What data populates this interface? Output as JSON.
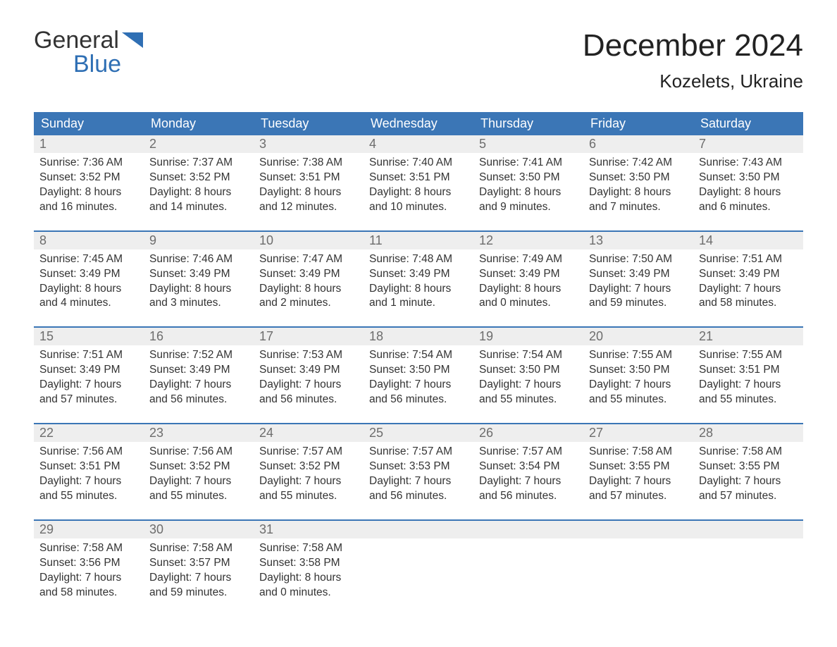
{
  "brand": {
    "top": "General",
    "bottom": "Blue",
    "top_color": "#333333",
    "bottom_color": "#2f6fb4",
    "flag_color": "#2f6fb4"
  },
  "title": "December 2024",
  "location": "Kozelets, Ukraine",
  "colors": {
    "header_bg": "#3b76b6",
    "header_text": "#ffffff",
    "daynum_bg": "#eeeeee",
    "daynum_text": "#6d6d6d",
    "body_text": "#333333",
    "week_border": "#3b76b6",
    "page_bg": "#ffffff"
  },
  "typography": {
    "title_fontsize": 44,
    "location_fontsize": 26,
    "dayheader_fontsize": 18,
    "daynum_fontsize": 18,
    "daydata_fontsize": 15.5,
    "font_family": "Arial"
  },
  "day_headers": [
    "Sunday",
    "Monday",
    "Tuesday",
    "Wednesday",
    "Thursday",
    "Friday",
    "Saturday"
  ],
  "weeks": [
    [
      {
        "n": "1",
        "sunrise": "Sunrise: 7:36 AM",
        "sunset": "Sunset: 3:52 PM",
        "dl1": "Daylight: 8 hours",
        "dl2": "and 16 minutes."
      },
      {
        "n": "2",
        "sunrise": "Sunrise: 7:37 AM",
        "sunset": "Sunset: 3:52 PM",
        "dl1": "Daylight: 8 hours",
        "dl2": "and 14 minutes."
      },
      {
        "n": "3",
        "sunrise": "Sunrise: 7:38 AM",
        "sunset": "Sunset: 3:51 PM",
        "dl1": "Daylight: 8 hours",
        "dl2": "and 12 minutes."
      },
      {
        "n": "4",
        "sunrise": "Sunrise: 7:40 AM",
        "sunset": "Sunset: 3:51 PM",
        "dl1": "Daylight: 8 hours",
        "dl2": "and 10 minutes."
      },
      {
        "n": "5",
        "sunrise": "Sunrise: 7:41 AM",
        "sunset": "Sunset: 3:50 PM",
        "dl1": "Daylight: 8 hours",
        "dl2": "and 9 minutes."
      },
      {
        "n": "6",
        "sunrise": "Sunrise: 7:42 AM",
        "sunset": "Sunset: 3:50 PM",
        "dl1": "Daylight: 8 hours",
        "dl2": "and 7 minutes."
      },
      {
        "n": "7",
        "sunrise": "Sunrise: 7:43 AM",
        "sunset": "Sunset: 3:50 PM",
        "dl1": "Daylight: 8 hours",
        "dl2": "and 6 minutes."
      }
    ],
    [
      {
        "n": "8",
        "sunrise": "Sunrise: 7:45 AM",
        "sunset": "Sunset: 3:49 PM",
        "dl1": "Daylight: 8 hours",
        "dl2": "and 4 minutes."
      },
      {
        "n": "9",
        "sunrise": "Sunrise: 7:46 AM",
        "sunset": "Sunset: 3:49 PM",
        "dl1": "Daylight: 8 hours",
        "dl2": "and 3 minutes."
      },
      {
        "n": "10",
        "sunrise": "Sunrise: 7:47 AM",
        "sunset": "Sunset: 3:49 PM",
        "dl1": "Daylight: 8 hours",
        "dl2": "and 2 minutes."
      },
      {
        "n": "11",
        "sunrise": "Sunrise: 7:48 AM",
        "sunset": "Sunset: 3:49 PM",
        "dl1": "Daylight: 8 hours",
        "dl2": "and 1 minute."
      },
      {
        "n": "12",
        "sunrise": "Sunrise: 7:49 AM",
        "sunset": "Sunset: 3:49 PM",
        "dl1": "Daylight: 8 hours",
        "dl2": "and 0 minutes."
      },
      {
        "n": "13",
        "sunrise": "Sunrise: 7:50 AM",
        "sunset": "Sunset: 3:49 PM",
        "dl1": "Daylight: 7 hours",
        "dl2": "and 59 minutes."
      },
      {
        "n": "14",
        "sunrise": "Sunrise: 7:51 AM",
        "sunset": "Sunset: 3:49 PM",
        "dl1": "Daylight: 7 hours",
        "dl2": "and 58 minutes."
      }
    ],
    [
      {
        "n": "15",
        "sunrise": "Sunrise: 7:51 AM",
        "sunset": "Sunset: 3:49 PM",
        "dl1": "Daylight: 7 hours",
        "dl2": "and 57 minutes."
      },
      {
        "n": "16",
        "sunrise": "Sunrise: 7:52 AM",
        "sunset": "Sunset: 3:49 PM",
        "dl1": "Daylight: 7 hours",
        "dl2": "and 56 minutes."
      },
      {
        "n": "17",
        "sunrise": "Sunrise: 7:53 AM",
        "sunset": "Sunset: 3:49 PM",
        "dl1": "Daylight: 7 hours",
        "dl2": "and 56 minutes."
      },
      {
        "n": "18",
        "sunrise": "Sunrise: 7:54 AM",
        "sunset": "Sunset: 3:50 PM",
        "dl1": "Daylight: 7 hours",
        "dl2": "and 56 minutes."
      },
      {
        "n": "19",
        "sunrise": "Sunrise: 7:54 AM",
        "sunset": "Sunset: 3:50 PM",
        "dl1": "Daylight: 7 hours",
        "dl2": "and 55 minutes."
      },
      {
        "n": "20",
        "sunrise": "Sunrise: 7:55 AM",
        "sunset": "Sunset: 3:50 PM",
        "dl1": "Daylight: 7 hours",
        "dl2": "and 55 minutes."
      },
      {
        "n": "21",
        "sunrise": "Sunrise: 7:55 AM",
        "sunset": "Sunset: 3:51 PM",
        "dl1": "Daylight: 7 hours",
        "dl2": "and 55 minutes."
      }
    ],
    [
      {
        "n": "22",
        "sunrise": "Sunrise: 7:56 AM",
        "sunset": "Sunset: 3:51 PM",
        "dl1": "Daylight: 7 hours",
        "dl2": "and 55 minutes."
      },
      {
        "n": "23",
        "sunrise": "Sunrise: 7:56 AM",
        "sunset": "Sunset: 3:52 PM",
        "dl1": "Daylight: 7 hours",
        "dl2": "and 55 minutes."
      },
      {
        "n": "24",
        "sunrise": "Sunrise: 7:57 AM",
        "sunset": "Sunset: 3:52 PM",
        "dl1": "Daylight: 7 hours",
        "dl2": "and 55 minutes."
      },
      {
        "n": "25",
        "sunrise": "Sunrise: 7:57 AM",
        "sunset": "Sunset: 3:53 PM",
        "dl1": "Daylight: 7 hours",
        "dl2": "and 56 minutes."
      },
      {
        "n": "26",
        "sunrise": "Sunrise: 7:57 AM",
        "sunset": "Sunset: 3:54 PM",
        "dl1": "Daylight: 7 hours",
        "dl2": "and 56 minutes."
      },
      {
        "n": "27",
        "sunrise": "Sunrise: 7:58 AM",
        "sunset": "Sunset: 3:55 PM",
        "dl1": "Daylight: 7 hours",
        "dl2": "and 57 minutes."
      },
      {
        "n": "28",
        "sunrise": "Sunrise: 7:58 AM",
        "sunset": "Sunset: 3:55 PM",
        "dl1": "Daylight: 7 hours",
        "dl2": "and 57 minutes."
      }
    ],
    [
      {
        "n": "29",
        "sunrise": "Sunrise: 7:58 AM",
        "sunset": "Sunset: 3:56 PM",
        "dl1": "Daylight: 7 hours",
        "dl2": "and 58 minutes."
      },
      {
        "n": "30",
        "sunrise": "Sunrise: 7:58 AM",
        "sunset": "Sunset: 3:57 PM",
        "dl1": "Daylight: 7 hours",
        "dl2": "and 59 minutes."
      },
      {
        "n": "31",
        "sunrise": "Sunrise: 7:58 AM",
        "sunset": "Sunset: 3:58 PM",
        "dl1": "Daylight: 8 hours",
        "dl2": "and 0 minutes."
      },
      null,
      null,
      null,
      null
    ]
  ]
}
